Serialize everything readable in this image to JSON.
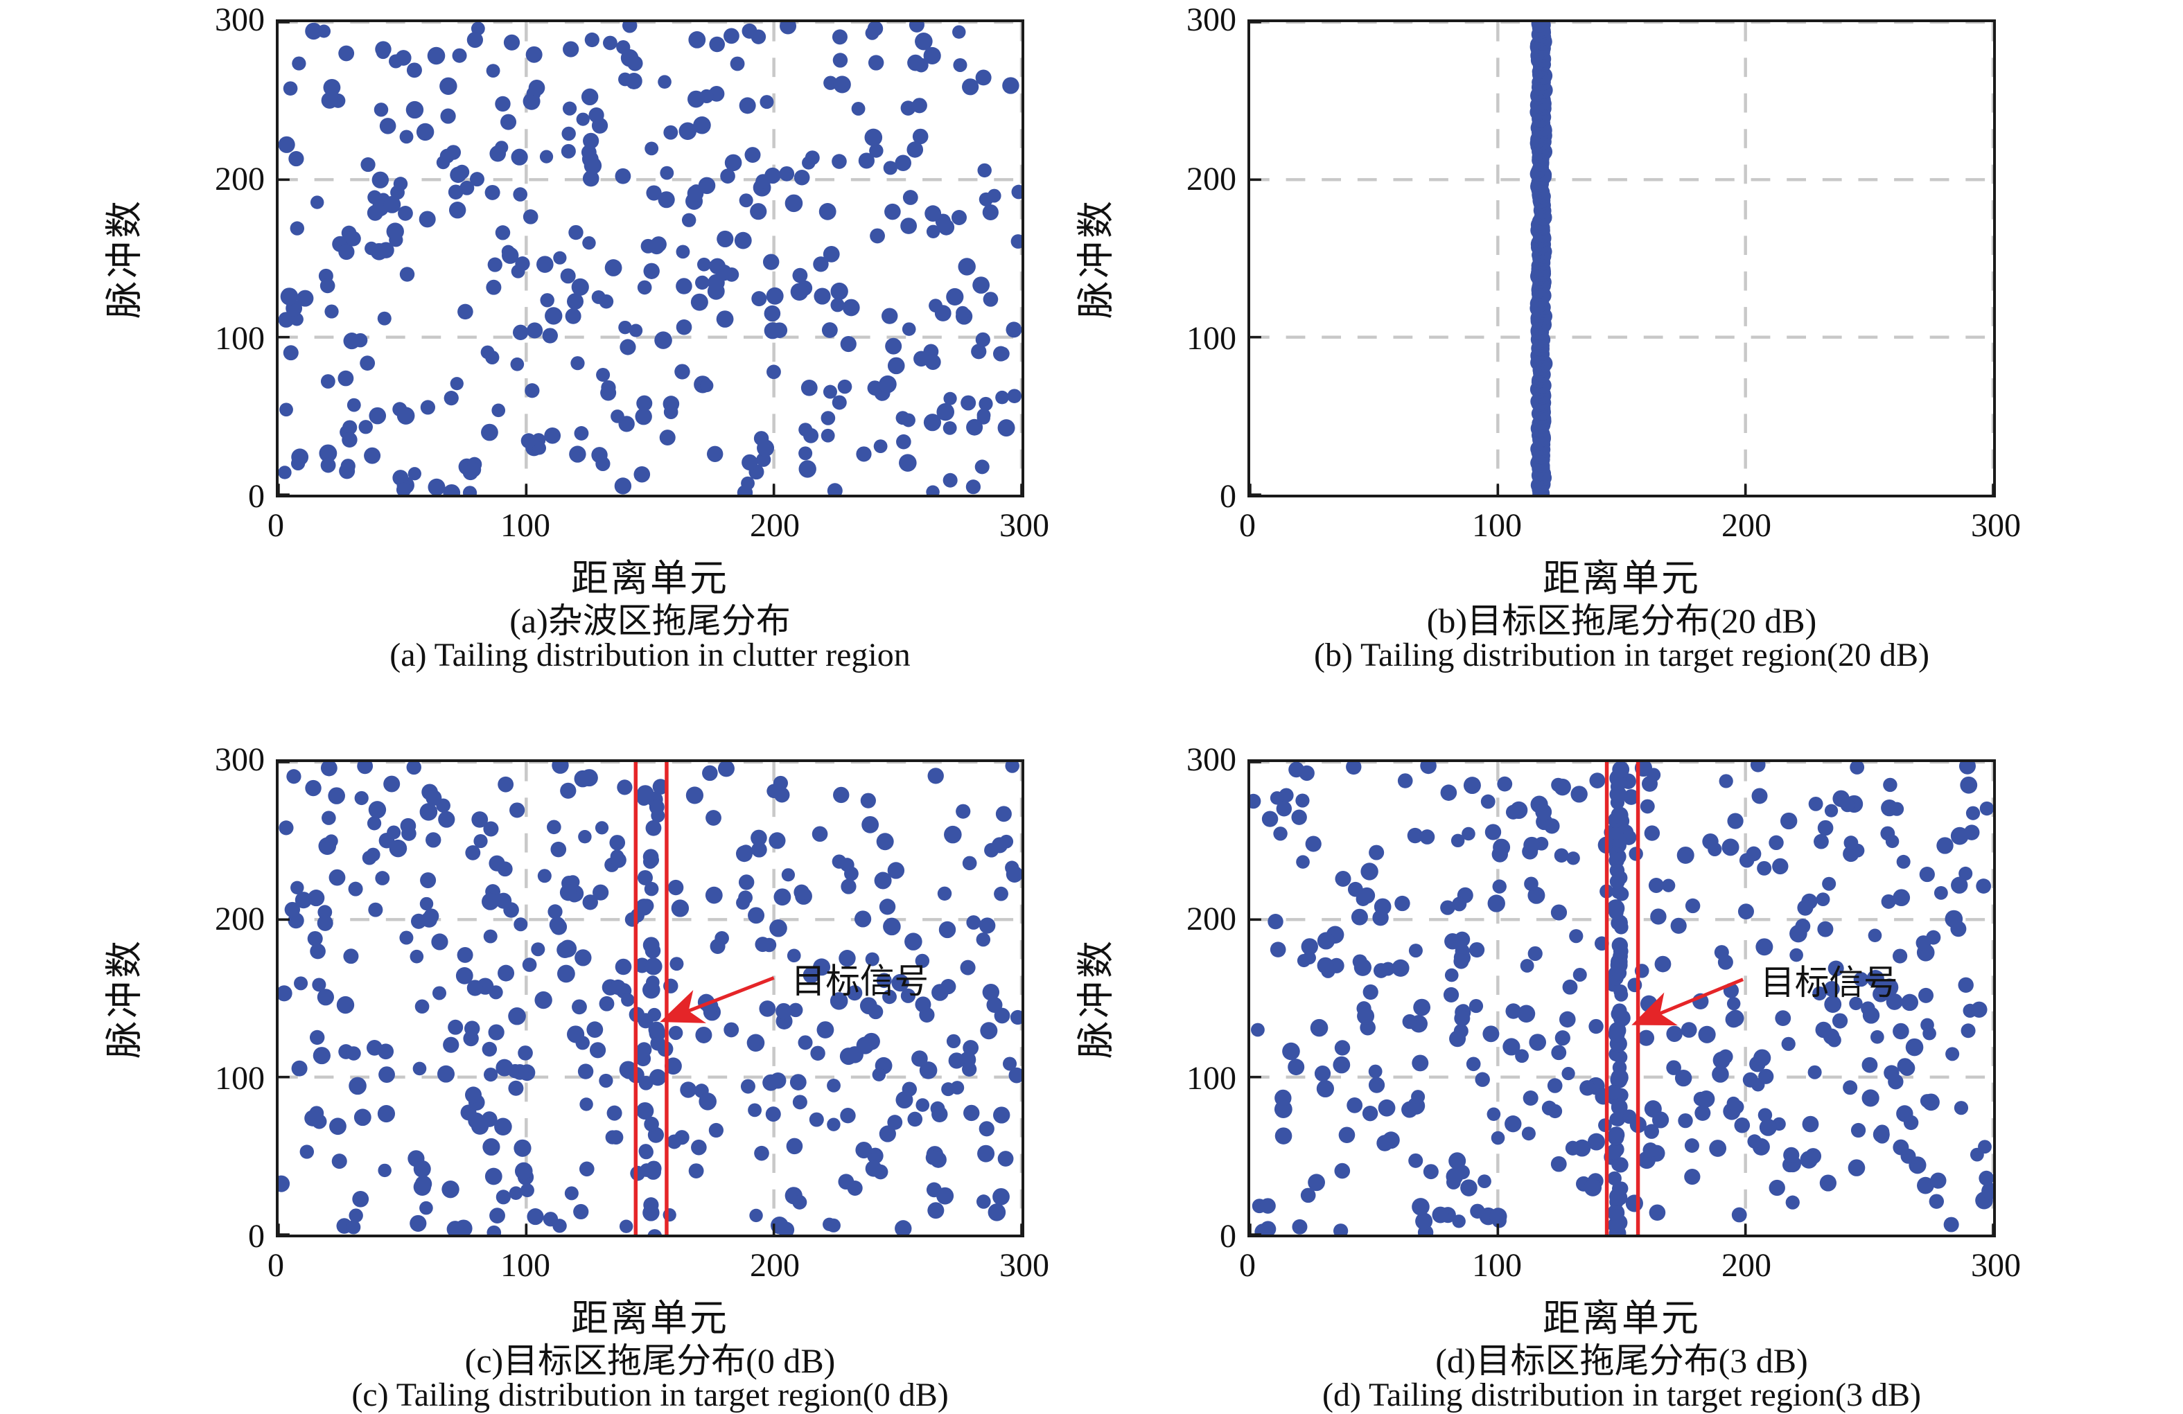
{
  "colors": {
    "dot_blue": "#3a53a5",
    "grid_gray": "#c8c8c8",
    "frame_black": "#1a1a1a",
    "target_red": "#e52528",
    "background": "#ffffff"
  },
  "chart_data": [
    {
      "id": "a",
      "type": "scatter",
      "xlabel": "距离单元",
      "ylabel": "脉冲数",
      "caption_zh": "(a)杂波区拖尾分布",
      "caption_en": "(a) Tailing distribution in clutter region",
      "xlim": [
        0,
        300
      ],
      "ylim": [
        0,
        300
      ],
      "xticks": [
        0,
        100,
        200,
        300
      ],
      "yticks": [
        300,
        200,
        100,
        0
      ],
      "grid": {
        "x": [
          100,
          200,
          300
        ],
        "y": [
          100,
          200,
          300
        ],
        "style": "dashed",
        "color": "#c8c8c8"
      },
      "series": [
        {
          "name": "clutter-points",
          "distribution": "uniform",
          "seed": 11,
          "count": 385,
          "x_range": [
            1,
            299
          ],
          "y_range": [
            1,
            299
          ],
          "marker": {
            "color": "#3a53a5",
            "radius": 11
          }
        }
      ]
    },
    {
      "id": "b",
      "type": "scatter",
      "xlabel": "距离单元",
      "ylabel": "脉冲数",
      "caption_zh": "(b)目标区拖尾分布(20 dB)",
      "caption_en": "(b) Tailing distribution in target region(20 dB)",
      "xlim": [
        0,
        300
      ],
      "ylim": [
        0,
        300
      ],
      "xticks": [
        0,
        100,
        200,
        300
      ],
      "yticks": [
        300,
        200,
        100,
        0
      ],
      "grid": {
        "x": [
          100,
          200,
          300
        ],
        "y": [
          100,
          200,
          300
        ],
        "style": "dashed",
        "color": "#c8c8c8"
      },
      "series": [
        {
          "name": "target-band",
          "distribution": "band",
          "seed": 21,
          "count": 330,
          "x_center": 117.5,
          "x_spread": 1.2,
          "y_range": [
            0,
            300
          ],
          "marker": {
            "color": "#3a53a5",
            "radius": 11
          }
        }
      ]
    },
    {
      "id": "c",
      "type": "scatter",
      "xlabel": "距离单元",
      "ylabel": "脉冲数",
      "caption_zh": "(c)目标区拖尾分布(0 dB)",
      "caption_en": "(c) Tailing distribution in target region(0 dB)",
      "xlim": [
        0,
        300
      ],
      "ylim": [
        0,
        300
      ],
      "xticks": [
        0,
        100,
        200,
        300
      ],
      "yticks": [
        300,
        200,
        100,
        0
      ],
      "grid": {
        "x": [
          100,
          200,
          300
        ],
        "y": [
          100,
          200,
          300
        ],
        "style": "dashed",
        "color": "#c8c8c8"
      },
      "series": [
        {
          "name": "clutter-points",
          "distribution": "uniform",
          "seed": 31,
          "count": 395,
          "x_range": [
            1,
            299
          ],
          "y_range": [
            1,
            299
          ],
          "marker": {
            "color": "#3a53a5",
            "radius": 11
          }
        },
        {
          "name": "target-strip",
          "distribution": "band",
          "seed": 32,
          "count": 27,
          "x_center": 150,
          "x_spread": 3.2,
          "y_range": [
            1,
            299
          ],
          "marker": {
            "color": "#3a53a5",
            "radius": 11
          }
        }
      ],
      "target_box": {
        "x1": 144.2,
        "x2": 156.7,
        "color": "#e52528"
      },
      "annotation": {
        "label": "目标信号",
        "label_pos": [
          207,
          161
        ],
        "arrow_tail": [
          200,
          163
        ],
        "arrow_tip": [
          154,
          135
        ],
        "color": "#e52528"
      }
    },
    {
      "id": "d",
      "type": "scatter",
      "xlabel": "距离单元",
      "ylabel": "脉冲数",
      "caption_zh": "(d)目标区拖尾分布(3 dB)",
      "caption_en": "(d) Tailing distribution in target region(3 dB)",
      "xlim": [
        0,
        300
      ],
      "ylim": [
        0,
        300
      ],
      "xticks": [
        0,
        100,
        200,
        300
      ],
      "yticks": [
        300,
        200,
        100,
        0
      ],
      "grid": {
        "x": [
          100,
          200,
          300
        ],
        "y": [
          100,
          200,
          300
        ],
        "style": "dashed",
        "color": "#c8c8c8"
      },
      "series": [
        {
          "name": "clutter-points",
          "distribution": "uniform",
          "seed": 41,
          "count": 395,
          "x_range": [
            1,
            299
          ],
          "y_range": [
            1,
            299
          ],
          "marker": {
            "color": "#3a53a5",
            "radius": 11
          }
        },
        {
          "name": "target-strip",
          "distribution": "band",
          "seed": 42,
          "count": 64,
          "x_center": 148.5,
          "x_spread": 1.6,
          "y_range": [
            0,
            300
          ],
          "marker": {
            "color": "#3a53a5",
            "radius": 11
          }
        }
      ],
      "target_box": {
        "x1": 144.0,
        "x2": 156.6,
        "color": "#e52528"
      },
      "annotation": {
        "label": "目标信号",
        "label_pos": [
          206,
          160
        ],
        "arrow_tail": [
          199,
          162
        ],
        "arrow_tip": [
          154,
          133
        ],
        "color": "#e52528"
      }
    }
  ]
}
